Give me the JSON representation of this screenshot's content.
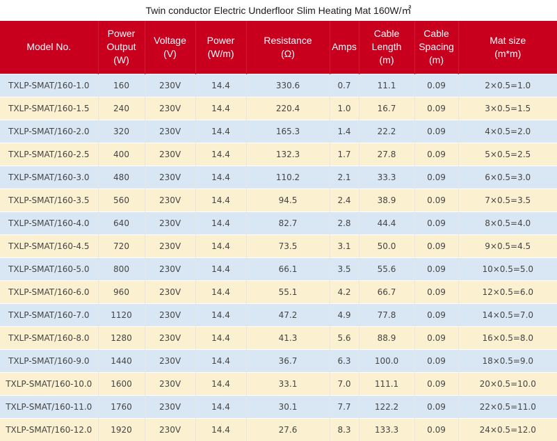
{
  "title": "Twin conductor Electric Underfloor Slim Heating Mat 160W/㎡",
  "headers": [
    "Model No.",
    "Power\nOutput\n(W)",
    "Voltage\n(V)",
    "Power\n(W/m)",
    "Resistance\n(Ω)",
    "Amps",
    "Cable\nLength\n(m)",
    "Cable\nSpacing\n(m)",
    "Mat size\n(m*m)"
  ],
  "rows": [
    [
      "TXLP-SMAT/160-1.0",
      "160",
      "230V",
      "14.4",
      "330.6",
      "0.7",
      "11.1",
      "0.09",
      "2×0.5=1.0"
    ],
    [
      "TXLP-SMAT/160-1.5",
      "240",
      "230V",
      "14.4",
      "220.4",
      "1.0",
      "16.7",
      "0.09",
      "3×0.5=1.5"
    ],
    [
      "TXLP-SMAT/160-2.0",
      "320",
      "230V",
      "14.4",
      "165.3",
      "1.4",
      "22.2",
      "0.09",
      "4×0.5=2.0"
    ],
    [
      "TXLP-SMAT/160-2.5",
      "400",
      "230V",
      "14.4",
      "132.3",
      "1.7",
      "27.8",
      "0.09",
      "5×0.5=2.5"
    ],
    [
      "TXLP-SMAT/160-3.0",
      "480",
      "230V",
      "14.4",
      "110.2",
      "2.1",
      "33.3",
      "0.09",
      "6×0.5=3.0"
    ],
    [
      "TXLP-SMAT/160-3.5",
      "560",
      "230V",
      "14.4",
      "94.5",
      "2.4",
      "38.9",
      "0.09",
      "7×0.5=3.5"
    ],
    [
      "TXLP-SMAT/160-4.0",
      "640",
      "230V",
      "14.4",
      "82.7",
      "2.8",
      "44.4",
      "0.09",
      "8×0.5=4.0"
    ],
    [
      "TXLP-SMAT/160-4.5",
      "720",
      "230V",
      "14.4",
      "73.5",
      "3.1",
      "50.0",
      "0.09",
      "9×0.5=4.5"
    ],
    [
      "TXLP-SMAT/160-5.0",
      "800",
      "230V",
      "14.4",
      "66.1",
      "3.5",
      "55.6",
      "0.09",
      "10×0.5=5.0"
    ],
    [
      "TXLP-SMAT/160-6.0",
      "960",
      "230V",
      "14.4",
      "55.1",
      "4.2",
      "66.7",
      "0.09",
      "12×0.5=6.0"
    ],
    [
      "TXLP-SMAT/160-7.0",
      "1120",
      "230V",
      "14.4",
      "47.2",
      "4.9",
      "77.8",
      "0.09",
      "14×0.5=7.0"
    ],
    [
      "TXLP-SMAT/160-8.0",
      "1280",
      "230V",
      "14.4",
      "41.3",
      "5.6",
      "88.9",
      "0.09",
      "16×0.5=8.0"
    ],
    [
      "TXLP-SMAT/160-9.0",
      "1440",
      "230V",
      "14.4",
      "36.7",
      "6.3",
      "100.0",
      "0.09",
      "18×0.5=9.0"
    ],
    [
      "TXLP-SMAT/160-10.0",
      "1600",
      "230V",
      "14.4",
      "33.1",
      "7.0",
      "111.1",
      "0.09",
      "20×0.5=10.0"
    ],
    [
      "TXLP-SMAT/160-11.0",
      "1760",
      "230V",
      "14.4",
      "30.1",
      "7.7",
      "122.2",
      "0.09",
      "22×0.5=11.0"
    ],
    [
      "TXLP-SMAT/160-12.0",
      "1920",
      "230V",
      "14.4",
      "27.6",
      "8.3",
      "133.3",
      "0.09",
      "24×0.5=12.0"
    ]
  ],
  "colors": {
    "header_bg": "#c8001e",
    "header_text": "#ffffff",
    "row_odd": "#d9e7f4",
    "row_even": "#fbf0cf",
    "cell_text": "#444444"
  }
}
